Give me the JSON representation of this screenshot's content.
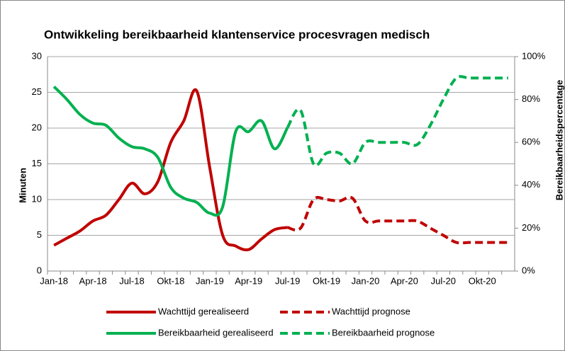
{
  "chart_data": {
    "type": "line",
    "title": "Ontwikkeling  bereikbaarheid klantenservice procesvragen medisch",
    "y_label": "Minuten",
    "y2_label": "Bereikbaarheidspercentage",
    "categories": [
      "Jan-18",
      null,
      null,
      "Apr-18",
      null,
      null,
      "Jul-18",
      null,
      null,
      "Okt-18",
      null,
      null,
      "Jan-19",
      null,
      null,
      "Apr-19",
      null,
      null,
      "Jul-19",
      null,
      null,
      "Okt-19",
      null,
      null,
      "Jan-20",
      null,
      null,
      "Apr-20",
      null,
      null,
      "Jul-20",
      null,
      null,
      "Okt-20",
      null,
      null
    ],
    "ylim": [
      0,
      30
    ],
    "yticks": [
      0,
      5,
      10,
      15,
      20,
      25,
      30
    ],
    "y2lim": [
      0,
      100
    ],
    "y2ticks": [
      {
        "value": 0,
        "label": "0%"
      },
      {
        "value": 20,
        "label": "20%"
      },
      {
        "value": 40,
        "label": "40%"
      },
      {
        "value": 60,
        "label": "60%"
      },
      {
        "value": 80,
        "label": "80%"
      },
      {
        "value": 100,
        "label": "100%"
      }
    ],
    "grid": true,
    "series": [
      {
        "name": "Wachttijd gerealiseerd",
        "color": "#c00000",
        "dash": false,
        "values": [
          3.6,
          4.6,
          5.6,
          7,
          7.8,
          10,
          12.3,
          10.8,
          12.5,
          18,
          21,
          25.2,
          14.5,
          5,
          3.5,
          3,
          4.5,
          5.8,
          6.1,
          null,
          null,
          null,
          null,
          null,
          null,
          null,
          null,
          null,
          null,
          null,
          null,
          null,
          null,
          null,
          null,
          null
        ]
      },
      {
        "name": "Wachttijd prognose",
        "color": "#c00000",
        "dash": true,
        "values": [
          null,
          null,
          null,
          null,
          null,
          null,
          null,
          null,
          null,
          null,
          null,
          null,
          null,
          null,
          null,
          null,
          null,
          null,
          6.1,
          6,
          10,
          10,
          9.8,
          10.2,
          7,
          7,
          7,
          7,
          7,
          6,
          5,
          4,
          4,
          4,
          4,
          4
        ]
      },
      {
        "name": "Bereikbaarheid gerealiseerd",
        "color": "#00b050",
        "dash": false,
        "axis": "y2",
        "values": [
          86,
          80,
          73,
          69,
          68,
          62,
          58,
          57,
          53,
          39,
          34,
          32,
          27,
          30,
          65,
          65,
          70,
          57,
          67,
          null,
          null,
          null,
          null,
          null,
          null,
          null,
          null,
          null,
          null,
          null,
          null,
          null,
          null,
          null,
          null,
          null
        ]
      },
      {
        "name": "Bereikbaarheid prognose",
        "color": "#00b050",
        "dash": true,
        "axis": "y2",
        "values": [
          null,
          null,
          null,
          null,
          null,
          null,
          null,
          null,
          null,
          null,
          null,
          null,
          null,
          null,
          null,
          null,
          null,
          null,
          67,
          75,
          50,
          55,
          55,
          50,
          60,
          60,
          60,
          60,
          59,
          68,
          80,
          90,
          90,
          90,
          90,
          90
        ]
      }
    ]
  }
}
